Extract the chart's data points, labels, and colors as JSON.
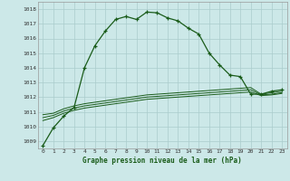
{
  "title": "Graphe pression niveau de la mer (hPa)",
  "background_color": "#cce8e8",
  "grid_color": "#aacccc",
  "line_color": "#1a5c1a",
  "x_ticks": [
    0,
    1,
    2,
    3,
    4,
    5,
    6,
    7,
    8,
    9,
    10,
    11,
    12,
    13,
    14,
    15,
    16,
    17,
    18,
    19,
    20,
    21,
    22,
    23
  ],
  "ylim": [
    1008.5,
    1018.5
  ],
  "yticks": [
    1009,
    1010,
    1011,
    1012,
    1013,
    1014,
    1015,
    1016,
    1017,
    1018
  ],
  "series_main": [
    1008.7,
    1009.9,
    1010.7,
    1011.3,
    1014.0,
    1015.5,
    1016.5,
    1017.3,
    1017.5,
    1017.3,
    1017.8,
    1017.75,
    1017.4,
    1017.2,
    1016.7,
    1016.3,
    1015.0,
    1014.2,
    1013.5,
    1013.4,
    1012.2,
    1012.2,
    1012.4,
    1012.5
  ],
  "series_flat1": [
    1010.8,
    1010.9,
    1011.2,
    1011.4,
    1011.55,
    1011.65,
    1011.75,
    1011.85,
    1011.95,
    1012.05,
    1012.15,
    1012.2,
    1012.25,
    1012.3,
    1012.35,
    1012.4,
    1012.45,
    1012.5,
    1012.55,
    1012.6,
    1012.65,
    1012.2,
    1012.3,
    1012.4
  ],
  "series_flat2": [
    1010.6,
    1010.75,
    1011.05,
    1011.25,
    1011.4,
    1011.5,
    1011.6,
    1011.7,
    1011.8,
    1011.9,
    1012.0,
    1012.05,
    1012.1,
    1012.15,
    1012.2,
    1012.25,
    1012.3,
    1012.35,
    1012.4,
    1012.45,
    1012.5,
    1012.15,
    1012.2,
    1012.3
  ],
  "series_flat3": [
    1010.4,
    1010.6,
    1010.9,
    1011.1,
    1011.25,
    1011.35,
    1011.45,
    1011.55,
    1011.65,
    1011.75,
    1011.85,
    1011.9,
    1011.95,
    1012.0,
    1012.05,
    1012.1,
    1012.15,
    1012.2,
    1012.25,
    1012.3,
    1012.35,
    1012.1,
    1012.15,
    1012.25
  ]
}
